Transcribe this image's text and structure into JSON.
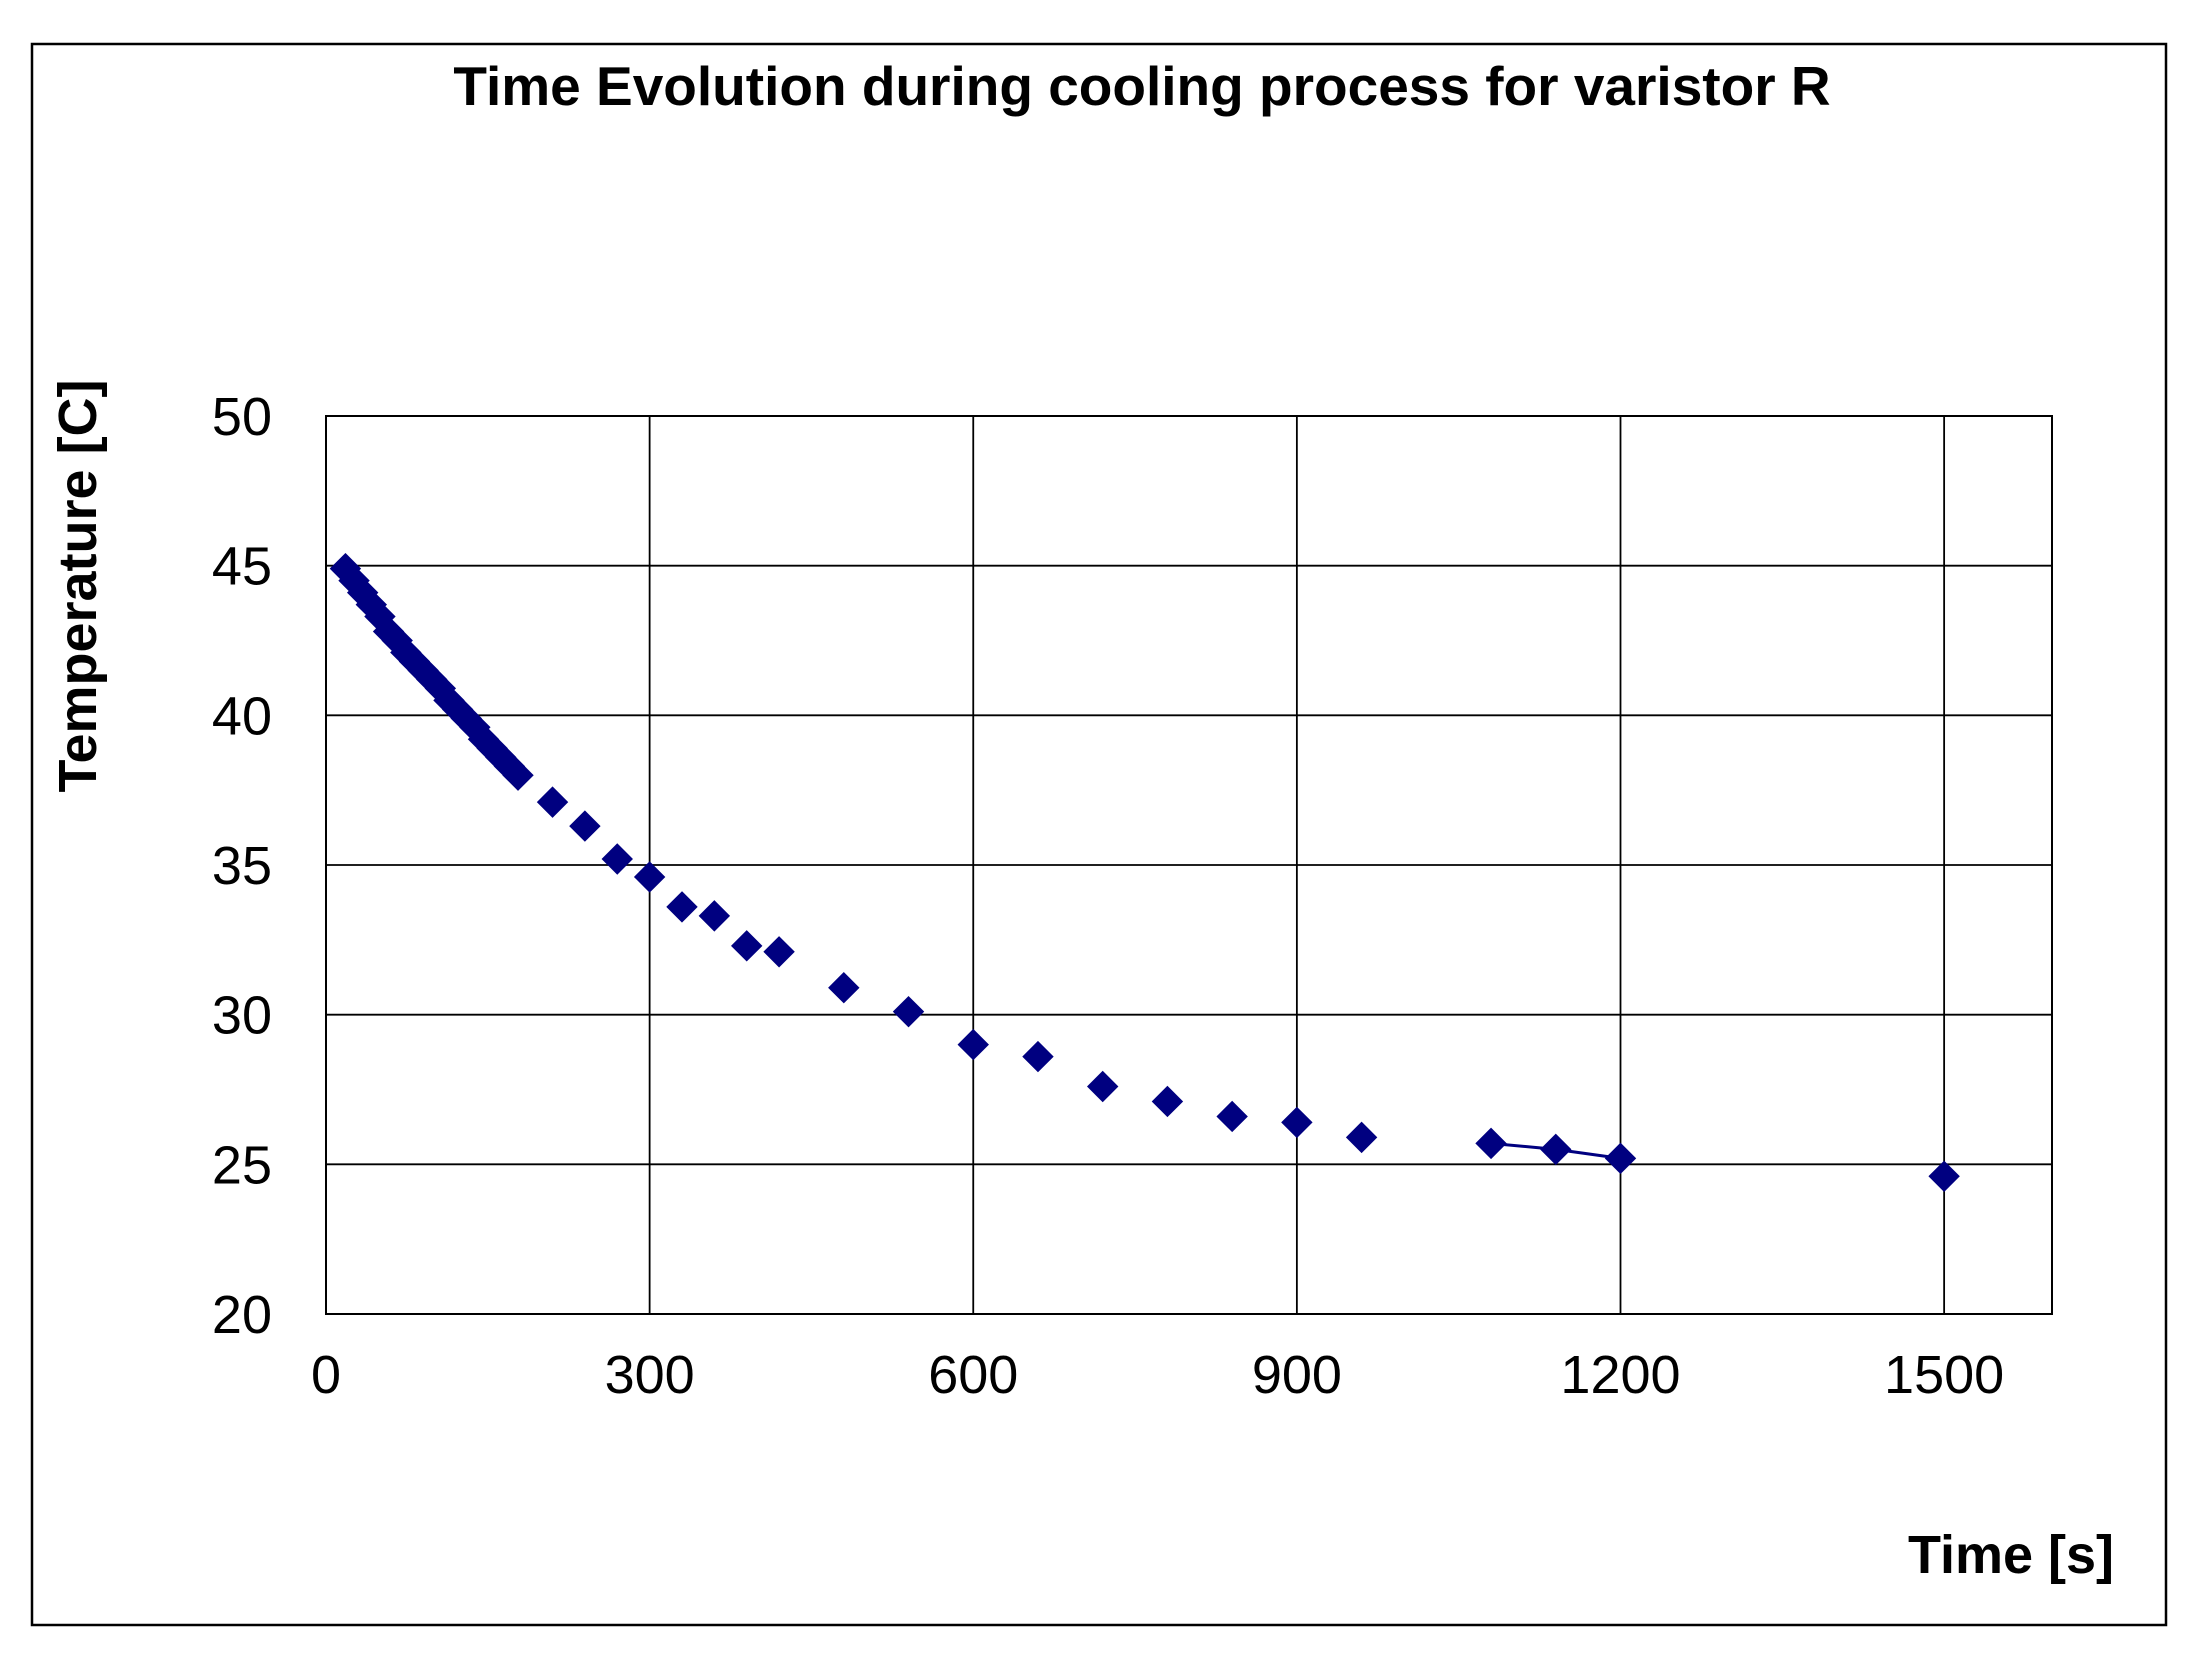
{
  "chart_data": {
    "type": "scatter",
    "title": "Time Evolution during cooling process for varistor R",
    "xlabel": "Time [s]",
    "ylabel": "Temperature [C]",
    "xlim": [
      0,
      1600
    ],
    "ylim": [
      20,
      50
    ],
    "x_ticks": [
      0,
      300,
      600,
      900,
      1200,
      1500
    ],
    "y_ticks": [
      20,
      25,
      30,
      35,
      40,
      45,
      50
    ],
    "x_tick_labels": [
      "0",
      "300",
      "600",
      "900",
      "1200",
      "1500"
    ],
    "y_tick_labels": [
      "20",
      "25",
      "30",
      "35",
      "40",
      "45",
      "50"
    ],
    "grid": true,
    "legend": "none",
    "marker_color": "#000080",
    "series": [
      {
        "name": "Temperature",
        "marker": "diamond",
        "x": [
          18,
          26,
          34,
          42,
          50,
          58,
          66,
          74,
          82,
          90,
          98,
          106,
          114,
          122,
          130,
          138,
          146,
          154,
          162,
          170,
          178,
          210,
          240,
          270,
          300,
          330,
          360,
          390,
          420,
          480,
          540,
          600,
          660,
          720,
          780,
          840,
          900,
          960,
          1080,
          1140,
          1200,
          1500
        ],
        "y": [
          44.9,
          44.5,
          44.1,
          43.7,
          43.3,
          42.8,
          42.5,
          42.1,
          41.8,
          41.5,
          41.2,
          40.9,
          40.5,
          40.2,
          39.9,
          39.6,
          39.2,
          38.9,
          38.6,
          38.3,
          38.0,
          37.1,
          36.3,
          35.2,
          34.6,
          33.6,
          33.3,
          32.3,
          32.1,
          30.9,
          30.1,
          29.0,
          28.6,
          27.6,
          27.1,
          26.6,
          26.4,
          25.9,
          25.7,
          25.5,
          25.2,
          24.6
        ]
      }
    ],
    "connected_segment": {
      "x": [
        1080,
        1140,
        1200
      ],
      "y": [
        25.7,
        25.5,
        25.2
      ]
    }
  }
}
